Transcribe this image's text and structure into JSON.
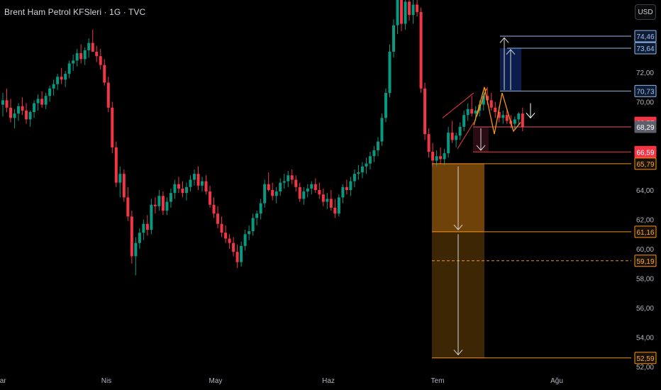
{
  "header": {
    "symbol_title": "Brent Ham Petrol KFSleri · 1G · TVC",
    "currency_button": "USD"
  },
  "colors": {
    "background": "#000000",
    "up": "#089981",
    "down": "#f23645",
    "axis_text": "#b2b5be",
    "orange": "#f7931a",
    "blue_line": "#8fb7e8",
    "navy_box": "#0b1d4d"
  },
  "chart_data": {
    "type": "candlestick",
    "title": "Brent Ham Petrol KFSleri · 1G · TVC",
    "y_ticks": [
      "72,00",
      "70,00",
      "64,00",
      "62,00",
      "60,00",
      "58,00",
      "56,00",
      "54,00",
      "52,00"
    ],
    "y_tick_values": [
      72,
      70,
      64,
      62,
      60,
      58,
      56,
      54,
      52
    ],
    "x_ticks": [
      "Mar",
      "Nis",
      "May",
      "Haz",
      "Tem",
      "Ağu"
    ],
    "ylim": [
      51.5,
      76.5
    ],
    "grid": false,
    "price_labels": [
      {
        "text": "74,46",
        "value": 74.46,
        "style": "blue"
      },
      {
        "text": "73,64",
        "value": 73.64,
        "style": "blue"
      },
      {
        "text": "70,73",
        "value": 70.73,
        "style": "blue"
      },
      {
        "text": "68,57",
        "value": 68.57,
        "style": "red-solid"
      },
      {
        "text": "68,29",
        "value": 68.29,
        "style": "gray"
      },
      {
        "text": "66,59",
        "value": 66.59,
        "style": "red-solid"
      },
      {
        "text": "65,79",
        "value": 65.79,
        "style": "orange"
      },
      {
        "text": "61,16",
        "value": 61.16,
        "style": "orange"
      },
      {
        "text": "59,19",
        "value": 59.19,
        "style": "orange"
      },
      {
        "text": "52,59",
        "value": 52.59,
        "style": "orange"
      }
    ],
    "candles": [
      [
        69.8,
        70.6,
        69.0,
        70.1
      ],
      [
        70.1,
        70.9,
        69.3,
        69.6
      ],
      [
        69.6,
        70.2,
        68.6,
        68.9
      ],
      [
        68.9,
        69.5,
        68.2,
        69.2
      ],
      [
        69.2,
        69.9,
        68.7,
        69.7
      ],
      [
        69.7,
        70.3,
        69.1,
        69.4
      ],
      [
        69.4,
        69.9,
        68.5,
        68.8
      ],
      [
        68.8,
        69.4,
        68.3,
        69.3
      ],
      [
        69.3,
        70.1,
        68.9,
        69.9
      ],
      [
        69.9,
        70.5,
        69.4,
        70.2
      ],
      [
        70.2,
        70.7,
        69.6,
        69.8
      ],
      [
        69.8,
        70.6,
        69.5,
        70.4
      ],
      [
        70.4,
        71.1,
        70.0,
        70.9
      ],
      [
        70.9,
        71.5,
        70.4,
        71.2
      ],
      [
        71.2,
        71.9,
        70.8,
        71.7
      ],
      [
        71.7,
        72.3,
        71.2,
        71.5
      ],
      [
        71.5,
        72.1,
        71.0,
        71.9
      ],
      [
        71.9,
        72.8,
        71.6,
        72.6
      ],
      [
        72.6,
        73.2,
        72.1,
        72.8
      ],
      [
        72.8,
        73.6,
        72.4,
        73.3
      ],
      [
        73.3,
        73.9,
        72.6,
        72.9
      ],
      [
        72.9,
        73.7,
        72.5,
        73.5
      ],
      [
        73.5,
        74.3,
        73.0,
        74.0
      ],
      [
        74.0,
        74.9,
        73.6,
        73.4
      ],
      [
        73.4,
        73.8,
        72.7,
        73.1
      ],
      [
        73.1,
        73.6,
        72.2,
        72.5
      ],
      [
        72.5,
        72.9,
        71.1,
        71.3
      ],
      [
        71.3,
        71.7,
        69.3,
        69.6
      ],
      [
        69.6,
        70.0,
        66.5,
        66.9
      ],
      [
        66.9,
        67.3,
        64.2,
        64.5
      ],
      [
        64.5,
        65.6,
        63.5,
        65.1
      ],
      [
        65.1,
        65.4,
        63.2,
        63.5
      ],
      [
        63.5,
        64.2,
        61.9,
        62.2
      ],
      [
        62.2,
        62.6,
        59.0,
        59.5
      ],
      [
        59.5,
        60.8,
        58.2,
        60.4
      ],
      [
        60.4,
        61.4,
        60.0,
        61.1
      ],
      [
        61.1,
        62.0,
        60.6,
        61.7
      ],
      [
        61.7,
        62.3,
        60.9,
        61.3
      ],
      [
        61.3,
        63.4,
        61.0,
        63.0
      ],
      [
        63.0,
        63.5,
        62.4,
        62.9
      ],
      [
        62.9,
        64.0,
        62.6,
        63.6
      ],
      [
        63.6,
        63.9,
        62.3,
        62.6
      ],
      [
        62.6,
        63.5,
        62.3,
        63.2
      ],
      [
        63.2,
        64.1,
        62.8,
        63.8
      ],
      [
        63.8,
        64.7,
        63.4,
        64.4
      ],
      [
        64.4,
        64.9,
        63.8,
        64.1
      ],
      [
        64.1,
        64.6,
        63.5,
        63.8
      ],
      [
        63.8,
        64.5,
        63.3,
        64.2
      ],
      [
        64.2,
        65.0,
        63.9,
        64.7
      ],
      [
        64.7,
        65.4,
        64.3,
        65.1
      ],
      [
        65.1,
        65.6,
        64.0,
        64.3
      ],
      [
        64.3,
        64.9,
        63.9,
        64.6
      ],
      [
        64.6,
        65.0,
        63.7,
        63.9
      ],
      [
        63.9,
        64.3,
        62.8,
        63.0
      ],
      [
        63.0,
        63.5,
        62.1,
        62.4
      ],
      [
        62.4,
        62.9,
        61.4,
        61.7
      ],
      [
        61.7,
        62.2,
        60.8,
        61.1
      ],
      [
        61.1,
        61.6,
        60.4,
        60.7
      ],
      [
        60.7,
        61.0,
        60.0,
        60.4
      ],
      [
        60.4,
        60.8,
        59.5,
        59.8
      ],
      [
        59.8,
        60.3,
        58.7,
        59.1
      ],
      [
        59.1,
        60.5,
        58.8,
        60.2
      ],
      [
        60.2,
        61.3,
        59.9,
        61.0
      ],
      [
        61.0,
        61.6,
        60.6,
        61.2
      ],
      [
        61.2,
        62.4,
        60.9,
        62.1
      ],
      [
        62.1,
        62.6,
        61.6,
        62.4
      ],
      [
        62.4,
        63.4,
        62.0,
        63.1
      ],
      [
        63.1,
        64.7,
        62.8,
        64.4
      ],
      [
        64.4,
        65.2,
        63.9,
        64.0
      ],
      [
        64.0,
        64.5,
        63.3,
        63.6
      ],
      [
        63.6,
        64.2,
        63.1,
        63.9
      ],
      [
        63.9,
        64.8,
        63.6,
        64.5
      ],
      [
        64.5,
        65.1,
        64.1,
        64.6
      ],
      [
        64.6,
        65.3,
        64.2,
        65.0
      ],
      [
        65.0,
        65.4,
        64.4,
        64.7
      ],
      [
        64.7,
        65.0,
        63.9,
        64.2
      ],
      [
        64.2,
        64.5,
        63.2,
        63.4
      ],
      [
        63.4,
        64.2,
        63.0,
        63.9
      ],
      [
        63.9,
        64.4,
        63.5,
        64.1
      ],
      [
        64.1,
        64.6,
        63.7,
        64.4
      ],
      [
        64.4,
        64.8,
        63.8,
        64.0
      ],
      [
        64.0,
        64.5,
        63.4,
        63.7
      ],
      [
        63.7,
        64.1,
        62.9,
        63.2
      ],
      [
        63.2,
        63.8,
        62.7,
        63.4
      ],
      [
        63.4,
        64.0,
        62.6,
        62.8
      ],
      [
        62.8,
        63.4,
        62.1,
        62.4
      ],
      [
        62.4,
        63.7,
        62.2,
        63.5
      ],
      [
        63.5,
        64.4,
        63.1,
        64.2
      ],
      [
        64.2,
        64.7,
        63.7,
        64.0
      ],
      [
        64.0,
        64.9,
        63.6,
        64.6
      ],
      [
        64.6,
        65.4,
        64.2,
        65.1
      ],
      [
        65.1,
        65.7,
        64.7,
        65.2
      ],
      [
        65.2,
        65.9,
        64.8,
        65.6
      ],
      [
        65.6,
        66.2,
        65.1,
        65.8
      ],
      [
        65.8,
        66.6,
        65.4,
        66.3
      ],
      [
        66.3,
        67.0,
        65.9,
        66.7
      ],
      [
        66.7,
        67.6,
        66.3,
        67.3
      ],
      [
        67.3,
        69.2,
        67.0,
        68.9
      ],
      [
        68.9,
        70.9,
        68.6,
        70.6
      ],
      [
        70.6,
        73.9,
        70.3,
        73.4
      ],
      [
        73.4,
        75.6,
        73.0,
        75.2
      ],
      [
        75.2,
        77.8,
        74.6,
        77.2
      ],
      [
        77.2,
        78.0,
        74.8,
        75.3
      ],
      [
        75.3,
        77.2,
        74.9,
        76.8
      ],
      [
        76.8,
        77.6,
        75.5,
        75.9
      ],
      [
        75.9,
        77.1,
        75.3,
        76.6
      ],
      [
        76.6,
        77.4,
        75.8,
        76.1
      ],
      [
        76.1,
        76.4,
        70.6,
        70.9
      ],
      [
        70.9,
        71.3,
        67.4,
        67.8
      ],
      [
        67.8,
        68.2,
        66.2,
        66.6
      ],
      [
        66.6,
        67.2,
        65.6,
        66.0
      ],
      [
        66.0,
        66.7,
        65.6,
        66.3
      ],
      [
        66.3,
        66.9,
        65.8,
        66.1
      ],
      [
        66.1,
        66.8,
        65.7,
        66.5
      ],
      [
        66.5,
        68.3,
        66.2,
        67.9
      ],
      [
        67.9,
        68.7,
        67.2,
        67.4
      ],
      [
        67.4,
        67.9,
        66.9,
        67.7
      ],
      [
        67.7,
        68.6,
        67.4,
        68.3
      ],
      [
        68.3,
        69.4,
        68.0,
        69.1
      ],
      [
        69.1,
        69.9,
        68.7,
        69.5
      ],
      [
        69.5,
        70.4,
        69.0,
        69.2
      ],
      [
        69.2,
        69.7,
        68.7,
        69.4
      ],
      [
        69.4,
        70.1,
        69.0,
        69.8
      ],
      [
        69.8,
        70.7,
        69.4,
        70.4
      ],
      [
        70.4,
        71.0,
        69.8,
        70.1
      ],
      [
        70.1,
        70.6,
        69.4,
        69.6
      ],
      [
        69.6,
        70.0,
        68.9,
        69.3
      ],
      [
        69.3,
        69.7,
        68.6,
        68.9
      ],
      [
        68.9,
        69.4,
        68.5,
        69.1
      ],
      [
        69.1,
        69.5,
        68.5,
        68.7
      ],
      [
        68.7,
        69.1,
        68.2,
        68.5
      ],
      [
        68.5,
        69.0,
        68.1,
        68.8
      ],
      [
        68.8,
        69.3,
        68.4,
        69.2
      ],
      [
        69.2,
        69.6,
        68.0,
        68.3
      ]
    ]
  }
}
